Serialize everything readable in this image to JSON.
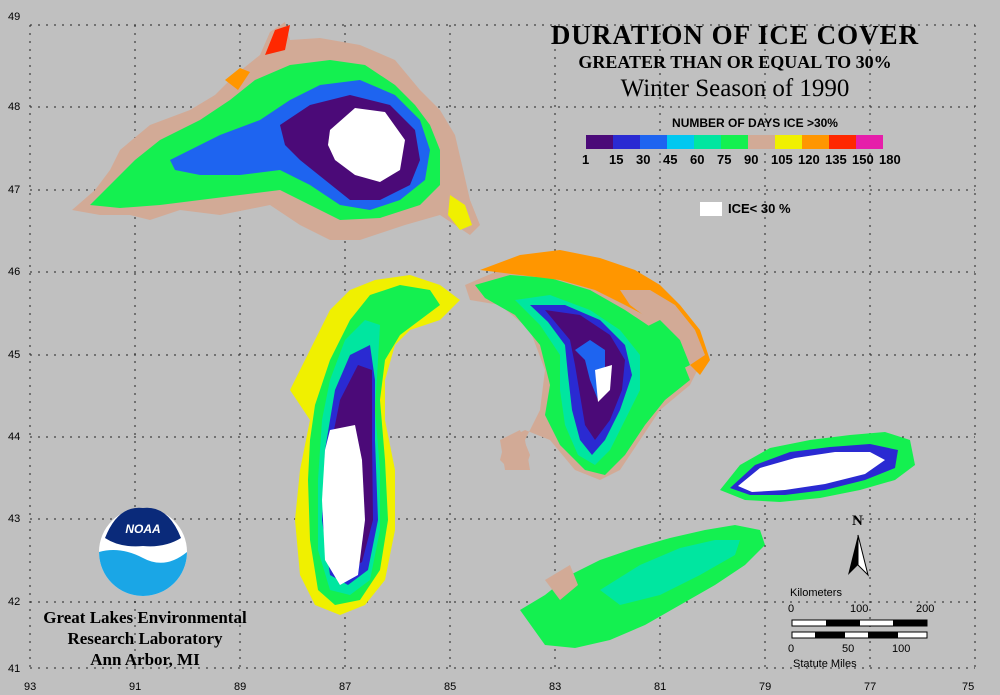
{
  "title": {
    "line1": "DURATION OF ICE COVER",
    "line2": "GREATER THAN OR EQUAL TO 30%",
    "line3": "Winter Season of 1990"
  },
  "legend": {
    "title": "NUMBER OF DAYS ICE >30%",
    "labels": [
      "1",
      "15",
      "30",
      "45",
      "60",
      "75",
      "90",
      "105",
      "120",
      "135",
      "150",
      "180"
    ],
    "colors": [
      "#4b0a78",
      "#2a2ad2",
      "#1e64f0",
      "#00c8f0",
      "#00e6a0",
      "#14f050",
      "#d2aa96",
      "#f0f000",
      "#ff9600",
      "#ff2800",
      "#e61eaa"
    ],
    "ice_label": "ICE< 30 %",
    "ice_color": "#ffffff"
  },
  "axes": {
    "lat_labels": [
      "49",
      "48",
      "47",
      "46",
      "45",
      "44",
      "43",
      "42",
      "41"
    ],
    "lon_labels": [
      "93",
      "91",
      "89",
      "87",
      "85",
      "83",
      "81",
      "79",
      "77",
      "75"
    ]
  },
  "credit": {
    "line1": "Great Lakes Environmental",
    "line2": "Research Laboratory",
    "line3": "Ann Arbor, MI"
  },
  "logo_text": "NOAA",
  "north_label": "N",
  "scale": {
    "km_label": "Kilometers",
    "km_ticks": [
      "0",
      "100",
      "200"
    ],
    "mi_label": "Statute Miles",
    "mi_ticks": [
      "0",
      "50",
      "100"
    ]
  }
}
